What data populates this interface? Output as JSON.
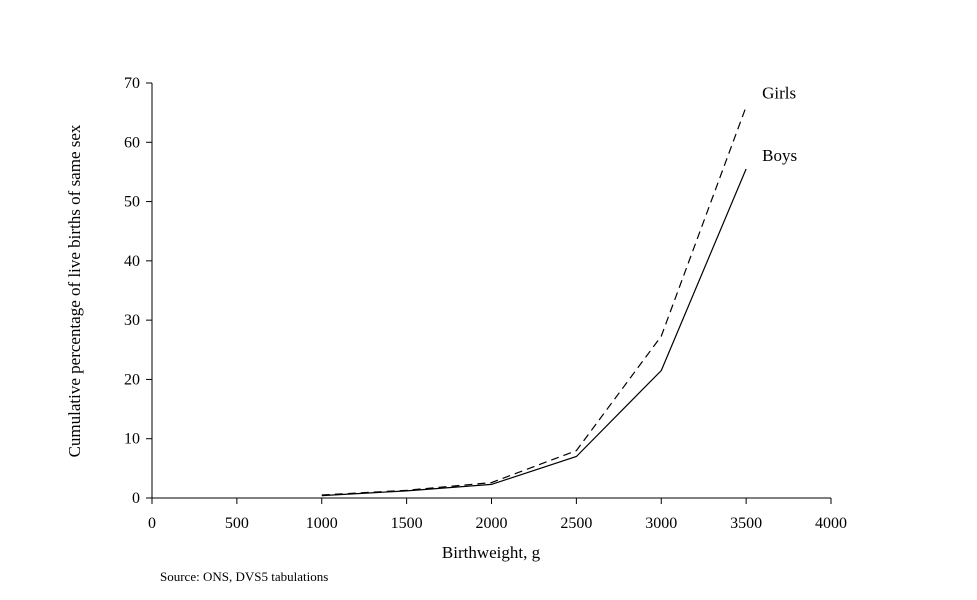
{
  "chart_data": {
    "type": "line",
    "xlabel": "Birthweight, g",
    "ylabel": "Cumulative percentage of live births of same sex",
    "xlim": [
      0,
      4000
    ],
    "ylim": [
      0,
      70
    ],
    "x_ticks": [
      "0",
      "500",
      "1000",
      "1500",
      "2000",
      "2500",
      "3000",
      "3500",
      "4000"
    ],
    "y_ticks": [
      "0",
      "10",
      "20",
      "30",
      "40",
      "50",
      "60",
      "70"
    ],
    "grid": false,
    "legend": "inline labels at line ends",
    "series": [
      {
        "name": "Girls",
        "line_style": "dashed",
        "color": "#000000",
        "x": [
          1000,
          1500,
          2000,
          2500,
          3000,
          3500
        ],
        "values": [
          0.5,
          1.3,
          2.6,
          8.0,
          27.3,
          66.0
        ]
      },
      {
        "name": "Boys",
        "line_style": "solid",
        "color": "#000000",
        "x": [
          1000,
          1500,
          2000,
          2500,
          3000,
          3500
        ],
        "values": [
          0.4,
          1.2,
          2.3,
          7.0,
          21.5,
          55.5
        ]
      }
    ],
    "source": "Source: ONS, DVS5 tabulations"
  }
}
